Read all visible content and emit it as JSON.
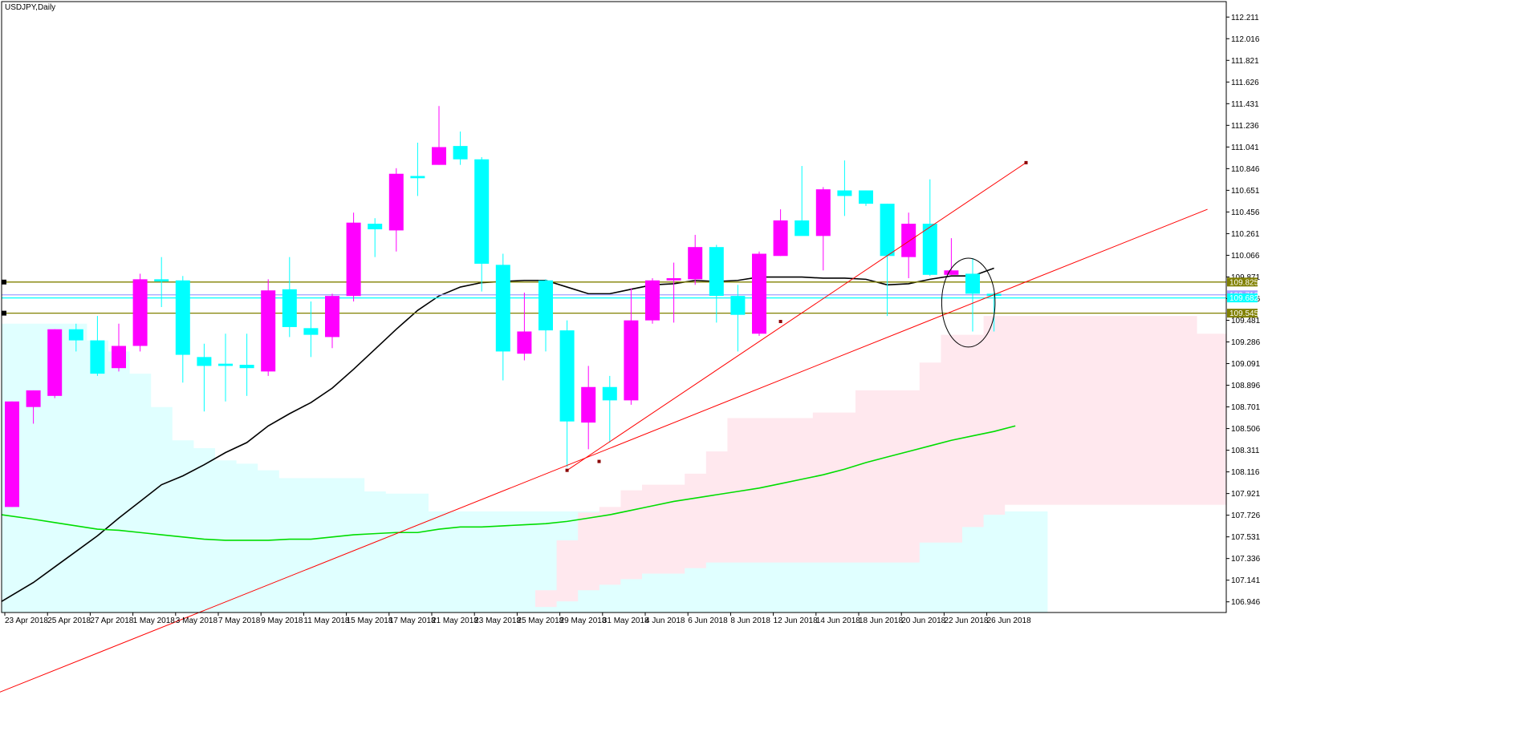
{
  "chart_data": {
    "type": "candlestick",
    "symbol_label": "USDJPY,Daily",
    "colors": {
      "bull": "#ff00ff",
      "bear": "#00ffff",
      "ma_fast": "#000000",
      "ma_slow": "#00dd00",
      "cloud_a": "#e0ffff",
      "cloud_b": "#ffe8ee",
      "trendline": "#ff0000",
      "level": "#808000",
      "level_tag_bg": "#808000",
      "cyan_tag_bg": "#00ffff",
      "price_line": "#a0a0ff"
    },
    "y_range": [
      106.85,
      112.35
    ],
    "y_ticks": [
      "112.211",
      "112.016",
      "111.821",
      "111.626",
      "111.431",
      "111.236",
      "111.041",
      "110.846",
      "110.651",
      "110.456",
      "110.261",
      "110.066",
      "109.871",
      "109.676",
      "109.481",
      "109.286",
      "109.091",
      "108.896",
      "108.701",
      "108.506",
      "108.311",
      "108.116",
      "107.921",
      "107.726",
      "107.531",
      "107.336",
      "107.141",
      "106.946"
    ],
    "x_labels": [
      {
        "i": 0,
        "text": "23 Apr 2018"
      },
      {
        "i": 2,
        "text": "25 Apr 2018"
      },
      {
        "i": 4,
        "text": "27 Apr 2018"
      },
      {
        "i": 6,
        "text": "1 May 2018"
      },
      {
        "i": 8,
        "text": "3 May 2018"
      },
      {
        "i": 10,
        "text": "7 May 2018"
      },
      {
        "i": 12,
        "text": "9 May 2018"
      },
      {
        "i": 14,
        "text": "11 May 2018"
      },
      {
        "i": 16,
        "text": "15 May 2018"
      },
      {
        "i": 18,
        "text": "17 May 2018"
      },
      {
        "i": 20,
        "text": "21 May 2018"
      },
      {
        "i": 22,
        "text": "23 May 2018"
      },
      {
        "i": 24,
        "text": "25 May 2018"
      },
      {
        "i": 26,
        "text": "29 May 2018"
      },
      {
        "i": 28,
        "text": "31 May 2018"
      },
      {
        "i": 30,
        "text": "4 Jun 2018"
      },
      {
        "i": 32,
        "text": "6 Jun 2018"
      },
      {
        "i": 34,
        "text": "8 Jun 2018"
      },
      {
        "i": 36,
        "text": "12 Jun 2018"
      },
      {
        "i": 38,
        "text": "14 Jun 2018"
      },
      {
        "i": 40,
        "text": "18 Jun 2018"
      },
      {
        "i": 42,
        "text": "20 Jun 2018"
      },
      {
        "i": 44,
        "text": "22 Jun 2018"
      },
      {
        "i": 46,
        "text": "26 Jun 2018"
      }
    ],
    "candles": [
      {
        "o": 107.8,
        "h": 108.75,
        "l": 107.8,
        "c": 108.75
      },
      {
        "o": 108.7,
        "h": 108.85,
        "l": 108.55,
        "c": 108.85
      },
      {
        "o": 108.8,
        "h": 109.4,
        "l": 108.78,
        "c": 109.4
      },
      {
        "o": 109.4,
        "h": 109.45,
        "l": 109.2,
        "c": 109.3
      },
      {
        "o": 109.3,
        "h": 109.52,
        "l": 108.98,
        "c": 109.0
      },
      {
        "o": 109.05,
        "h": 109.45,
        "l": 109.02,
        "c": 109.25
      },
      {
        "o": 109.25,
        "h": 109.9,
        "l": 109.2,
        "c": 109.85
      },
      {
        "o": 109.85,
        "h": 110.05,
        "l": 109.6,
        "c": 109.83
      },
      {
        "o": 109.84,
        "h": 109.88,
        "l": 108.92,
        "c": 109.17
      },
      {
        "o": 109.15,
        "h": 109.27,
        "l": 108.66,
        "c": 109.07
      },
      {
        "o": 109.09,
        "h": 109.36,
        "l": 108.75,
        "c": 109.07
      },
      {
        "o": 109.08,
        "h": 109.36,
        "l": 108.8,
        "c": 109.05
      },
      {
        "o": 109.02,
        "h": 109.85,
        "l": 108.98,
        "c": 109.75
      },
      {
        "o": 109.76,
        "h": 110.05,
        "l": 109.33,
        "c": 109.42
      },
      {
        "o": 109.41,
        "h": 109.65,
        "l": 109.15,
        "c": 109.35
      },
      {
        "o": 109.33,
        "h": 109.72,
        "l": 109.23,
        "c": 109.7
      },
      {
        "o": 109.7,
        "h": 110.45,
        "l": 109.65,
        "c": 110.36
      },
      {
        "o": 110.35,
        "h": 110.4,
        "l": 110.05,
        "c": 110.3
      },
      {
        "o": 110.29,
        "h": 110.85,
        "l": 110.1,
        "c": 110.8
      },
      {
        "o": 110.78,
        "h": 111.08,
        "l": 110.6,
        "c": 110.76
      },
      {
        "o": 110.88,
        "h": 111.41,
        "l": 110.88,
        "c": 111.04
      },
      {
        "o": 111.05,
        "h": 111.18,
        "l": 110.88,
        "c": 110.93
      },
      {
        "o": 110.93,
        "h": 110.95,
        "l": 109.74,
        "c": 109.99
      },
      {
        "o": 109.98,
        "h": 110.08,
        "l": 108.94,
        "c": 109.2
      },
      {
        "o": 109.18,
        "h": 109.73,
        "l": 109.12,
        "c": 109.38
      },
      {
        "o": 109.84,
        "h": 109.85,
        "l": 109.2,
        "c": 109.39
      },
      {
        "o": 109.39,
        "h": 109.48,
        "l": 108.16,
        "c": 108.57
      },
      {
        "o": 108.56,
        "h": 109.07,
        "l": 108.32,
        "c": 108.88
      },
      {
        "o": 108.88,
        "h": 108.98,
        "l": 108.38,
        "c": 108.76
      },
      {
        "o": 108.76,
        "h": 109.77,
        "l": 108.72,
        "c": 109.48
      },
      {
        "o": 109.48,
        "h": 109.86,
        "l": 109.45,
        "c": 109.84
      },
      {
        "o": 109.84,
        "h": 110.0,
        "l": 109.46,
        "c": 109.86
      },
      {
        "o": 109.85,
        "h": 110.25,
        "l": 109.8,
        "c": 110.14
      },
      {
        "o": 110.14,
        "h": 110.16,
        "l": 109.46,
        "c": 109.7
      },
      {
        "o": 109.7,
        "h": 109.8,
        "l": 109.2,
        "c": 109.53
      },
      {
        "o": 109.36,
        "h": 110.1,
        "l": 109.34,
        "c": 110.08
      },
      {
        "o": 110.06,
        "h": 110.48,
        "l": 110.06,
        "c": 110.38
      },
      {
        "o": 110.38,
        "h": 110.87,
        "l": 110.25,
        "c": 110.24
      },
      {
        "o": 110.24,
        "h": 110.68,
        "l": 109.93,
        "c": 110.66
      },
      {
        "o": 110.65,
        "h": 110.92,
        "l": 110.42,
        "c": 110.6
      },
      {
        "o": 110.65,
        "h": 110.65,
        "l": 110.51,
        "c": 110.53
      },
      {
        "o": 110.53,
        "h": 110.53,
        "l": 109.52,
        "c": 110.06
      },
      {
        "o": 110.05,
        "h": 110.45,
        "l": 109.86,
        "c": 110.35
      },
      {
        "o": 110.35,
        "h": 110.75,
        "l": 109.88,
        "c": 109.89
      },
      {
        "o": 109.89,
        "h": 110.22,
        "l": 109.89,
        "c": 109.93
      },
      {
        "o": 109.9,
        "h": 110.04,
        "l": 109.38,
        "c": 109.72
      },
      {
        "o": 109.72,
        "h": 109.73,
        "l": 109.38,
        "c": 109.7
      }
    ],
    "ma_fast": [
      106.95,
      107.12,
      107.26,
      107.4,
      107.54,
      107.7,
      107.85,
      108.0,
      108.08,
      108.18,
      108.29,
      108.38,
      108.53,
      108.64,
      108.74,
      108.87,
      109.04,
      109.22,
      109.4,
      109.57,
      109.7,
      109.78,
      109.82,
      109.83,
      109.84,
      109.84,
      109.78,
      109.72,
      109.72,
      109.76,
      109.8,
      109.81,
      109.84,
      109.83,
      109.84,
      109.87,
      109.87,
      109.87,
      109.86,
      109.86,
      109.85,
      109.8,
      109.81,
      109.85,
      109.88,
      109.88,
      109.95
    ],
    "ma_slow": [
      107.73,
      107.69,
      107.66,
      107.63,
      107.6,
      107.59,
      107.57,
      107.55,
      107.53,
      107.51,
      107.5,
      107.5,
      107.5,
      107.51,
      107.51,
      107.53,
      107.55,
      107.56,
      107.57,
      107.57,
      107.6,
      107.62,
      107.62,
      107.63,
      107.64,
      107.65,
      107.67,
      107.7,
      107.73,
      107.77,
      107.81,
      107.85,
      107.88,
      107.91,
      107.94,
      107.97,
      108.01,
      108.05,
      108.09,
      108.14,
      108.2,
      108.25,
      108.3,
      108.35,
      108.4,
      108.44,
      108.48,
      108.53
    ],
    "cloud_a_upper": [
      109.45,
      109.45,
      109.45,
      109.45,
      109.3,
      109.2,
      109.0,
      108.7,
      108.4,
      108.33,
      108.22,
      108.19,
      108.13,
      108.06,
      108.06,
      108.06,
      108.06,
      107.94,
      107.92,
      107.92,
      107.76,
      107.76,
      107.76,
      107.76,
      107.76,
      107.76,
      107.76,
      107.76,
      107.76,
      107.76,
      107.76,
      107.76,
      107.76,
      107.76,
      107.76,
      107.76,
      107.76,
      107.76,
      107.76,
      107.76,
      107.76,
      107.76,
      107.76,
      107.76,
      107.76,
      107.76,
      107.76,
      107.76,
      107.76
    ],
    "cloud_b_upper": [
      106.85,
      106.85,
      106.85,
      106.85,
      106.85,
      106.85,
      106.85,
      106.85,
      106.85,
      106.85,
      106.85,
      106.85,
      106.85,
      106.85,
      106.85,
      106.85,
      106.85,
      106.85,
      106.85,
      106.85,
      106.85,
      106.85,
      106.85,
      106.85,
      106.85,
      107.05,
      107.5,
      107.75,
      107.8,
      107.95,
      108.0,
      108.0,
      108.1,
      108.3,
      108.6,
      108.6,
      108.6,
      108.6,
      108.65,
      108.65,
      108.85,
      108.85,
      108.85,
      109.1,
      109.35,
      109.35,
      109.52,
      109.52,
      109.52,
      109.52,
      109.52,
      109.52,
      109.52,
      109.52,
      109.52,
      109.52,
      109.36,
      109.36,
      109.36,
      109.36,
      109.36,
      109.36,
      109.36,
      109.36,
      109.36
    ],
    "cloud_b_lower": [
      106.85,
      106.85,
      106.85,
      106.85,
      106.85,
      106.85,
      106.85,
      106.85,
      106.85,
      106.85,
      106.85,
      106.85,
      106.85,
      106.85,
      106.85,
      106.85,
      106.85,
      106.85,
      106.85,
      106.85,
      106.85,
      106.85,
      106.85,
      106.85,
      106.85,
      106.9,
      106.95,
      107.05,
      107.1,
      107.15,
      107.2,
      107.2,
      107.25,
      107.3,
      107.3,
      107.3,
      107.3,
      107.3,
      107.3,
      107.3,
      107.3,
      107.3,
      107.3,
      107.48,
      107.48,
      107.62,
      107.73,
      107.82,
      107.82,
      107.82,
      107.82,
      107.82,
      107.82,
      107.82,
      107.82,
      107.82,
      107.82,
      107.82,
      107.82,
      107.82,
      107.82,
      107.82,
      107.82,
      107.82,
      107.82
    ],
    "levels": [
      {
        "price": 109.825,
        "label": "109.825",
        "kind": "level"
      },
      {
        "price": 109.545,
        "label": "109.545",
        "kind": "level"
      }
    ],
    "current_price_lines": [
      {
        "price": 109.71,
        "label": "109.710",
        "kind": "blue"
      },
      {
        "price": 109.682,
        "label": "109.682",
        "kind": "cyan"
      }
    ],
    "trendlines": [
      {
        "x1": 26,
        "y1": 108.13,
        "x2": 47.5,
        "y2": 110.9
      },
      {
        "x1": -1,
        "y1": 106.1,
        "x2": 56,
        "y2": 110.48
      }
    ],
    "trend_markers": [
      {
        "i": 26,
        "price": 108.13
      },
      {
        "i": 27.5,
        "price": 108.21
      },
      {
        "i": 36,
        "price": 109.47
      },
      {
        "i": 47.5,
        "price": 110.9
      }
    ],
    "ellipse": {
      "cx": 44.8,
      "cy": 109.64,
      "rx": 1.25,
      "ry_price": 0.4
    }
  }
}
